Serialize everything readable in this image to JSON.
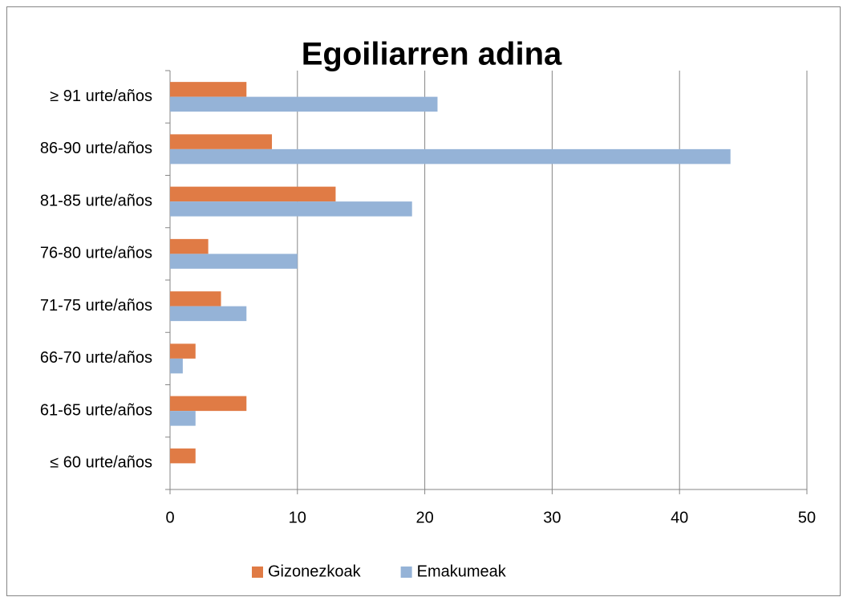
{
  "chart_data": {
    "type": "hbar",
    "title": "Egoiliarren adina",
    "categories": [
      "≤ 60 urte/años",
      "61-65 urte/años",
      "66-70 urte/años",
      "71-75 urte/años",
      "76-80 urte/años",
      "81-85 urte/años",
      "86-90 urte/años",
      "≥ 91 urte/años"
    ],
    "series": [
      {
        "name": "Gizonezkoak",
        "color": "#e07b45",
        "values": [
          2,
          6,
          2,
          4,
          3,
          13,
          8,
          6
        ]
      },
      {
        "name": "Emakumeak",
        "color": "#95b3d7",
        "values": [
          0,
          2,
          1,
          6,
          10,
          19,
          44,
          21
        ]
      }
    ],
    "xlim": [
      0,
      50
    ],
    "xticks": [
      0,
      10,
      20,
      30,
      40,
      50
    ],
    "grid": true,
    "legend": "bottom"
  }
}
